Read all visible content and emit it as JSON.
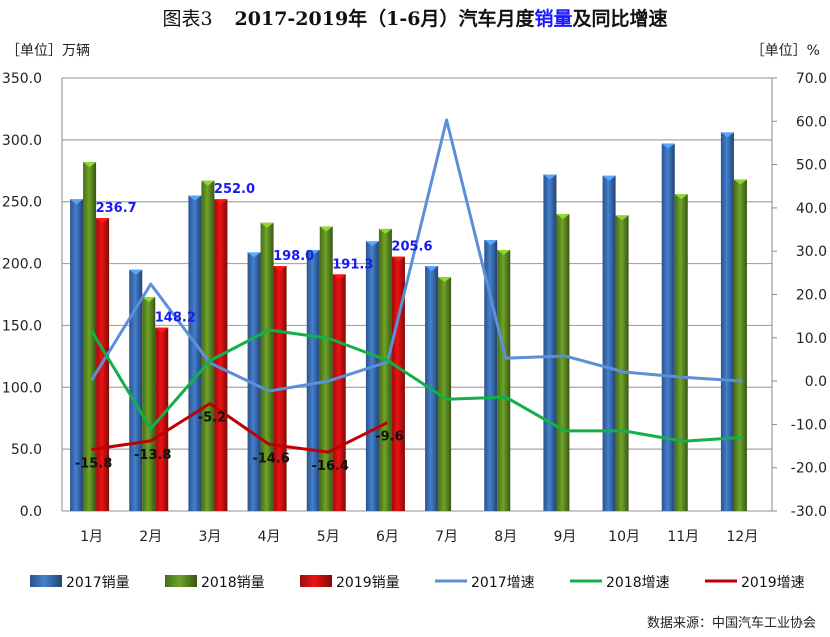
{
  "title": {
    "prefix": "图表3",
    "main_a": "2017-2019年（1-6月）汽车月度",
    "main_hl": "销量",
    "main_b": "及同比增速"
  },
  "left_unit": "［单位］万辆",
  "right_unit": "［单位］%",
  "source": "数据来源：中国汽车工业协会",
  "chart_data": {
    "type": "bar+line",
    "categories": [
      "1月",
      "2月",
      "3月",
      "4月",
      "5月",
      "6月",
      "7月",
      "8月",
      "9月",
      "10月",
      "11月",
      "12月"
    ],
    "left_axis": {
      "range": [
        0,
        350
      ],
      "ticks": [
        "0.0",
        "50.0",
        "100.0",
        "150.0",
        "200.0",
        "250.0",
        "300.0",
        "350.0"
      ]
    },
    "right_axis": {
      "range": [
        -30,
        70
      ],
      "ticks": [
        "-30.0",
        "-20.0",
        "-10.0",
        "0.0",
        "10.0",
        "20.0",
        "30.0",
        "40.0",
        "50.0",
        "60.0",
        "70.0"
      ]
    },
    "grid": true,
    "legend_position": "bottom",
    "bar_series": [
      {
        "name": "2017销量",
        "color": "#3a6fb5",
        "values": [
          252,
          195,
          255,
          209,
          211,
          218,
          198,
          219,
          272,
          271,
          297,
          306
        ]
      },
      {
        "name": "2018销量",
        "color": "#5f8f22",
        "values": [
          282,
          173,
          267,
          233,
          230,
          228,
          189,
          211,
          240,
          239,
          256,
          268
        ]
      },
      {
        "name": "2019销量",
        "color": "#d01010",
        "values": [
          236.7,
          148.2,
          252.0,
          198.0,
          191.3,
          205.6
        ],
        "labels": [
          "236.7",
          "148.2",
          "252.0",
          "198.0",
          "191.3",
          "205.6"
        ],
        "label_color": "#1a1aee"
      }
    ],
    "line_series": [
      {
        "name": "2017增速",
        "color": "#5b8fd8",
        "values": [
          0.2,
          22.4,
          4.2,
          -2.3,
          0.0,
          4.4,
          60.3,
          5.3,
          5.8,
          2.1,
          0.9,
          0.0
        ]
      },
      {
        "name": "2018增速",
        "color": "#13b04a",
        "values": [
          11.6,
          -11.0,
          4.7,
          11.8,
          9.9,
          4.8,
          -4.2,
          -3.7,
          -11.5,
          -11.5,
          -13.9,
          -13.0
        ]
      },
      {
        "name": "2019增速",
        "color": "#c00000",
        "values": [
          -15.8,
          -13.8,
          -5.2,
          -14.6,
          -16.4,
          -9.6
        ],
        "labels": [
          "-15.8",
          "-13.8",
          "-5.2",
          "-14.6",
          "-16.4",
          "-9.6"
        ]
      }
    ]
  }
}
